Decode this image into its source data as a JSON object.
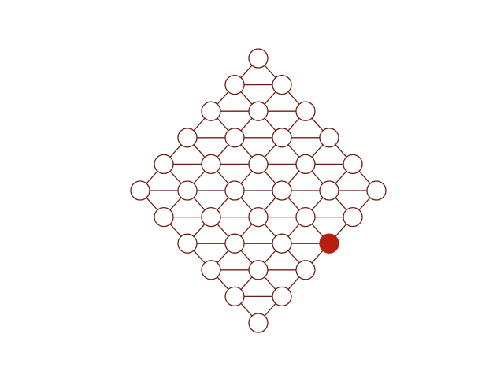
{
  "colors": {
    "line": "#6b1f14",
    "node_fill": "#ffffff",
    "selected_fill": "#b81e10"
  },
  "board": {
    "rows": [
      {
        "count": 1
      },
      {
        "count": 2
      },
      {
        "count": 3
      },
      {
        "count": 4
      },
      {
        "count": 5
      },
      {
        "count": 6
      },
      {
        "count": 5
      },
      {
        "count": 4
      },
      {
        "count": 3
      },
      {
        "count": 2
      },
      {
        "count": 1
      }
    ],
    "selected": {
      "row": 7,
      "index": 3
    }
  }
}
